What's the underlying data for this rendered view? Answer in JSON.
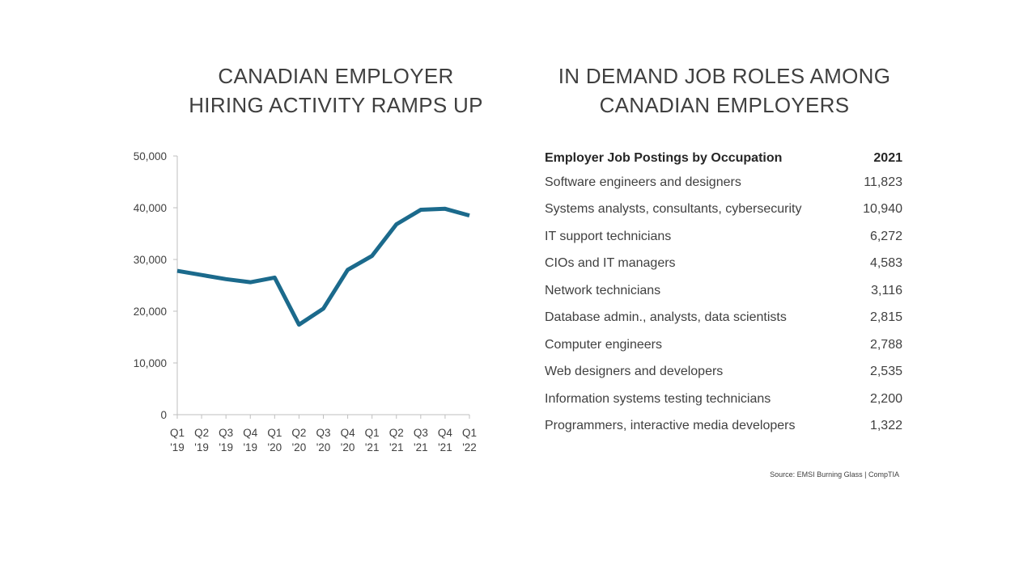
{
  "left_title": {
    "line1": "CANADIAN EMPLOYER",
    "line2": "HIRING ACTIVITY RAMPS UP"
  },
  "right_title": {
    "line1": "IN DEMAND JOB ROLES AMONG",
    "line2": "CANADIAN EMPLOYERS"
  },
  "chart_data": {
    "type": "line",
    "title": "CANADIAN EMPLOYER HIRING ACTIVITY RAMPS UP",
    "categories": [
      [
        "Q1",
        "'19"
      ],
      [
        "Q2",
        "'19"
      ],
      [
        "Q3",
        "'19"
      ],
      [
        "Q4",
        "'19"
      ],
      [
        "Q1",
        "'20"
      ],
      [
        "Q2",
        "'20"
      ],
      [
        "Q3",
        "'20"
      ],
      [
        "Q4",
        "'20"
      ],
      [
        "Q1",
        "'21"
      ],
      [
        "Q2",
        "'21"
      ],
      [
        "Q3",
        "'21"
      ],
      [
        "Q4",
        "'21"
      ],
      [
        "Q1",
        "'22"
      ]
    ],
    "series": [
      {
        "name": "Employer job postings",
        "values": [
          27800,
          27000,
          26200,
          25600,
          26500,
          17400,
          20500,
          28000,
          30700,
          36800,
          39600,
          39800,
          38500
        ]
      }
    ],
    "ylim": [
      0,
      50000
    ],
    "yticks": [
      0,
      10000,
      20000,
      30000,
      40000,
      50000
    ],
    "ytick_labels": [
      "0",
      "10,000",
      "20,000",
      "30,000",
      "40,000",
      "50,000"
    ],
    "line_color": "#1b6a8c",
    "xlabel": "",
    "ylabel": ""
  },
  "table": {
    "header": {
      "label": "Employer Job Postings by Occupation",
      "year": "2021"
    },
    "rows": [
      {
        "label": "Software engineers and designers",
        "value": "11,823"
      },
      {
        "label": "Systems analysts, consultants, cybersecurity",
        "value": "10,940"
      },
      {
        "label": "IT support technicians",
        "value": "6,272"
      },
      {
        "label": "CIOs and IT managers",
        "value": "4,583"
      },
      {
        "label": "Network technicians",
        "value": "3,116"
      },
      {
        "label": "Database admin., analysts, data scientists",
        "value": "2,815"
      },
      {
        "label": "Computer engineers",
        "value": "2,788"
      },
      {
        "label": "Web designers and developers",
        "value": "2,535"
      },
      {
        "label": "Information systems testing technicians",
        "value": "2,200"
      },
      {
        "label": "Programmers, interactive media developers",
        "value": "1,322"
      }
    ]
  },
  "source": "Source: EMSI Burning Glass | CompTIA"
}
